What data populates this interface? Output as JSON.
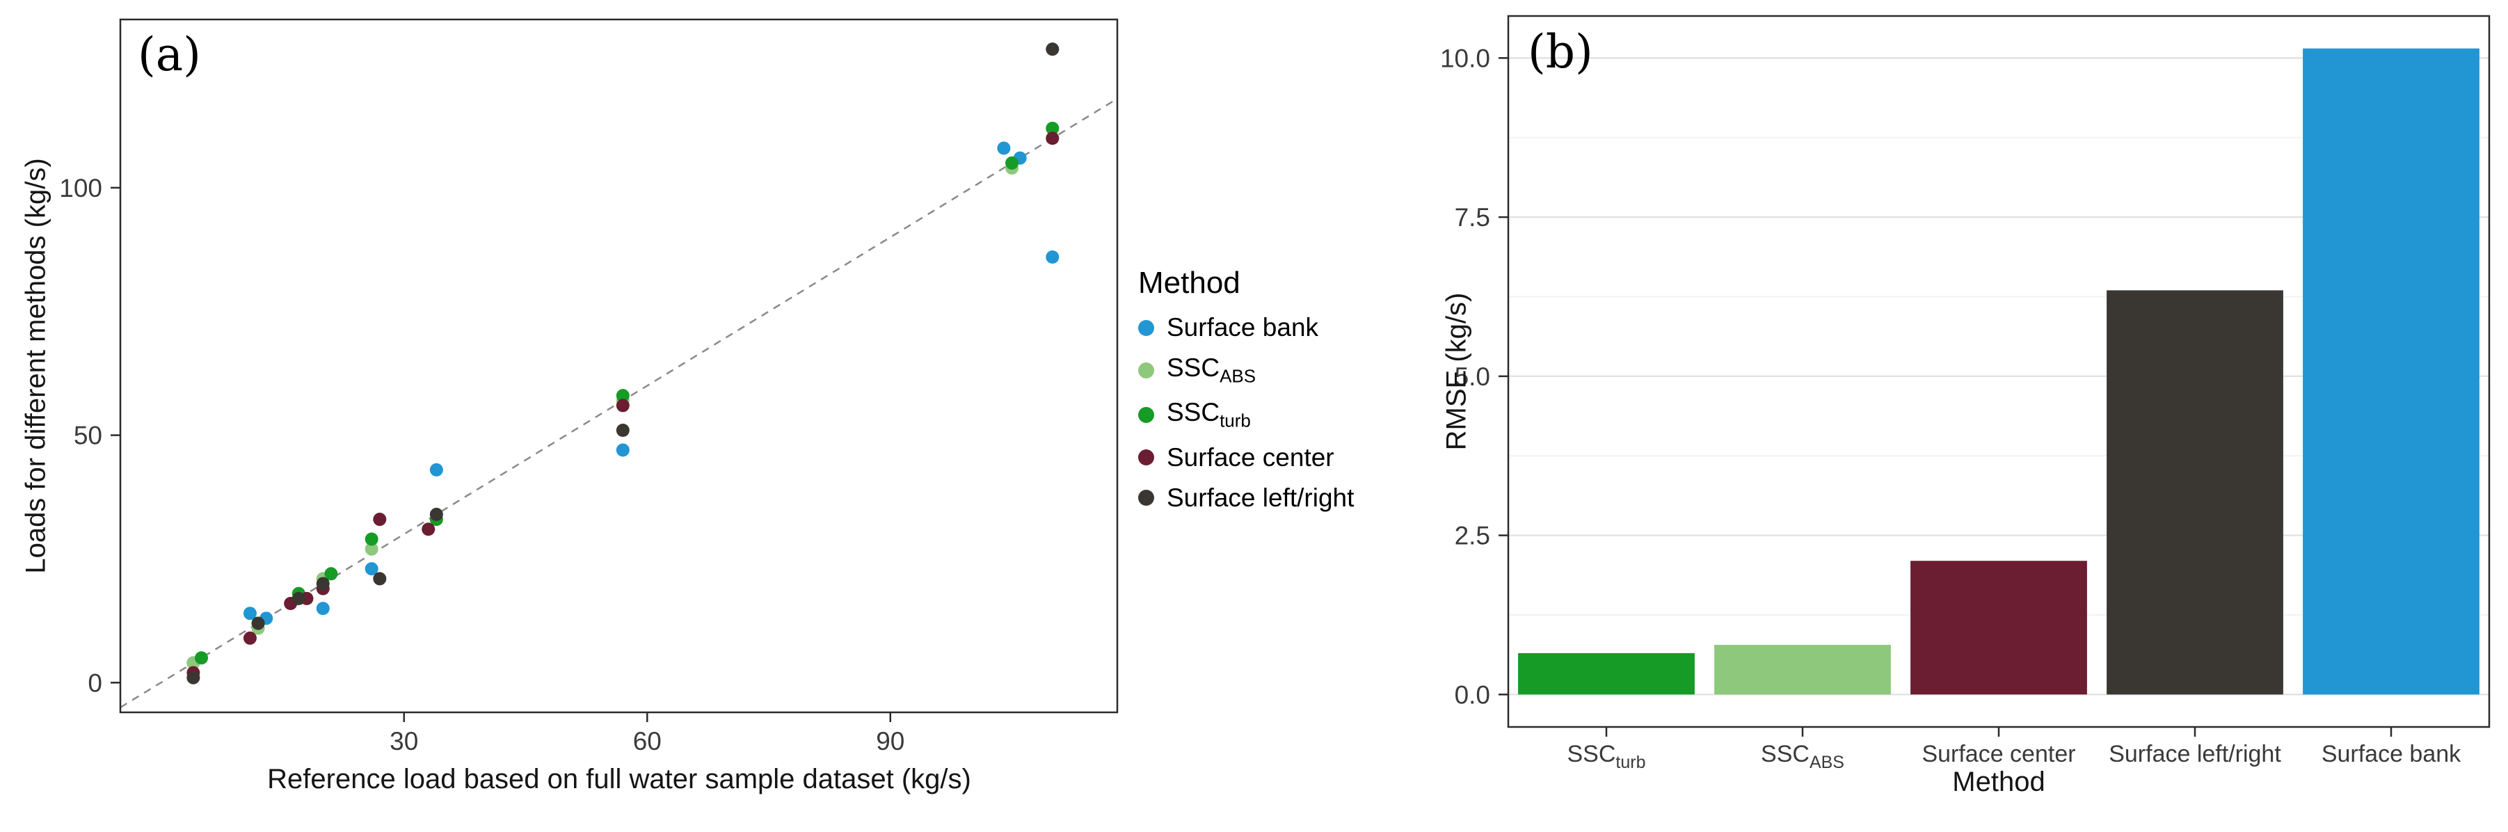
{
  "figure": {
    "panel_a_label": "(a)",
    "panel_b_label": "(b)"
  },
  "chart_data": [
    {
      "type": "scatter",
      "panel": "a",
      "title": "",
      "xlabel": "Reference load based on full water sample dataset (kg/s)",
      "ylabel": "Loads for different methods (kg/s)",
      "xlim": [
        -5,
        118
      ],
      "ylim": [
        -6,
        134
      ],
      "xticks": [
        {
          "v": 30,
          "label": "30"
        },
        {
          "v": 60,
          "label": "60"
        },
        {
          "v": 90,
          "label": "90"
        }
      ],
      "yticks": [
        {
          "v": 0,
          "label": "0"
        },
        {
          "v": 50,
          "label": "50"
        },
        {
          "v": 100,
          "label": "100"
        }
      ],
      "identity_line": {
        "from": [
          -5,
          -5
        ],
        "to": [
          118,
          118
        ],
        "style": "dashed",
        "color": "#8a8a8a"
      },
      "legend": {
        "title": "Method",
        "position": "right",
        "items": [
          {
            "text": "Surface bank",
            "sub": "",
            "color": "#2196d3"
          },
          {
            "text": "SSC",
            "sub": "ABS",
            "color": "#8ec87c"
          },
          {
            "text": "SSC",
            "sub": "turb",
            "color": "#169b26"
          },
          {
            "text": "Surface center",
            "sub": "",
            "color": "#6b1d32"
          },
          {
            "text": "Surface left/right",
            "sub": "",
            "color": "#3a3632"
          }
        ]
      },
      "series": [
        {
          "name": "Surface bank",
          "color": "#2196d3",
          "points": [
            [
              4,
              4
            ],
            [
              11,
              14
            ],
            [
              13,
              13
            ],
            [
              17,
              17
            ],
            [
              20,
              15
            ],
            [
              26,
              23
            ],
            [
              34,
              43
            ],
            [
              57,
              47
            ],
            [
              104,
              108
            ],
            [
              106,
              106
            ],
            [
              110,
              86
            ]
          ]
        },
        {
          "name": "SSC_ABS",
          "color": "#8ec87c",
          "points": [
            [
              4,
              4
            ],
            [
              12,
              11
            ],
            [
              17,
              18
            ],
            [
              20,
              21
            ],
            [
              26,
              27
            ],
            [
              34,
              33
            ],
            [
              57,
              57
            ],
            [
              105,
              104
            ],
            [
              110,
              112
            ]
          ]
        },
        {
          "name": "SSC_turb",
          "color": "#169b26",
          "points": [
            [
              5,
              5
            ],
            [
              12,
              12
            ],
            [
              17,
              18
            ],
            [
              21,
              22
            ],
            [
              26,
              29
            ],
            [
              34,
              33
            ],
            [
              57,
              58
            ],
            [
              105,
              105
            ],
            [
              110,
              112
            ]
          ]
        },
        {
          "name": "Surface center",
          "color": "#6b1d32",
          "points": [
            [
              4,
              2
            ],
            [
              11,
              9
            ],
            [
              16,
              16
            ],
            [
              18,
              17
            ],
            [
              20,
              19
            ],
            [
              27,
              33
            ],
            [
              33,
              31
            ],
            [
              57,
              56
            ],
            [
              110,
              110
            ]
          ]
        },
        {
          "name": "Surface left/right",
          "color": "#3a3632",
          "points": [
            [
              4,
              1
            ],
            [
              12,
              12
            ],
            [
              17,
              17
            ],
            [
              20,
              20
            ],
            [
              27,
              21
            ],
            [
              34,
              34
            ],
            [
              57,
              51
            ],
            [
              110,
              128
            ]
          ]
        }
      ]
    },
    {
      "type": "bar",
      "panel": "b",
      "title": "",
      "xlabel": "Method",
      "ylabel": "RMSE (kg/s)",
      "ylim": [
        -0.51,
        10.66
      ],
      "yticks": [
        {
          "v": 0,
          "label": "0.0"
        },
        {
          "v": 2.5,
          "label": "2.5"
        },
        {
          "v": 5,
          "label": "5.0"
        },
        {
          "v": 7.5,
          "label": "7.5"
        },
        {
          "v": 10,
          "label": "10.0"
        }
      ],
      "minor_gridlines": [
        1.25,
        3.75,
        6.25,
        8.75
      ],
      "categories": [
        {
          "text": "SSC",
          "sub": "turb"
        },
        {
          "text": "SSC",
          "sub": "ABS"
        },
        {
          "text": "Surface center",
          "sub": ""
        },
        {
          "text": "Surface left/right",
          "sub": ""
        },
        {
          "text": "Surface bank",
          "sub": ""
        }
      ],
      "values": [
        0.65,
        0.78,
        2.1,
        6.35,
        10.15
      ],
      "colors": [
        "#169b26",
        "#8ec87c",
        "#6b1d32",
        "#3a3632",
        "#2196d3"
      ],
      "grid": true,
      "legend_position": "none"
    }
  ]
}
